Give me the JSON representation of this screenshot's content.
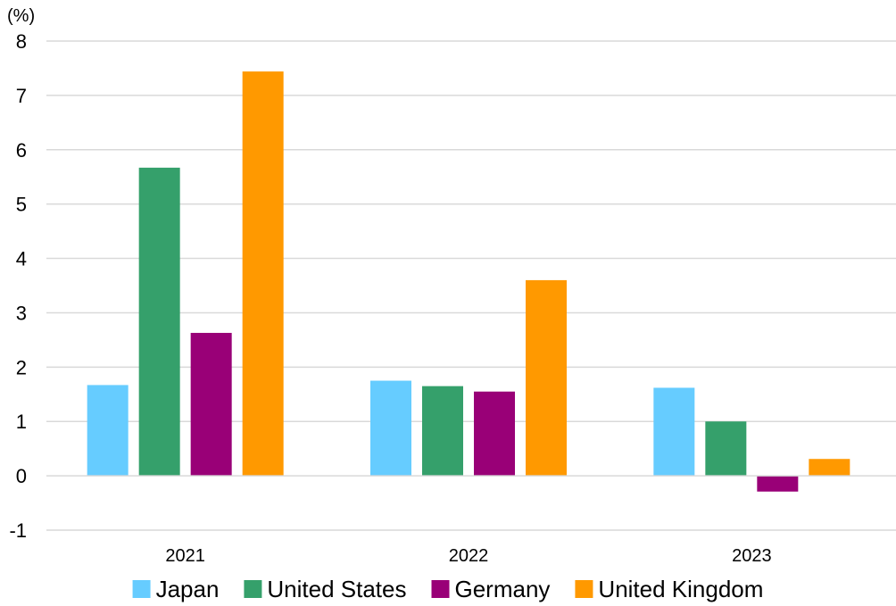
{
  "chart_data": {
    "type": "bar",
    "ylabel": "(%)",
    "ylim": [
      -1,
      8
    ],
    "yticks": [
      -1,
      0,
      1,
      2,
      3,
      4,
      5,
      6,
      7,
      8
    ],
    "categories": [
      "2021",
      "2022",
      "2023"
    ],
    "grid": true,
    "legend_position": "bottom",
    "series": [
      {
        "name": "Japan",
        "color": "#66ccff",
        "values": [
          1.67,
          1.75,
          1.62
        ]
      },
      {
        "name": "United States",
        "color": "#35a06b",
        "values": [
          5.67,
          1.65,
          1.0
        ]
      },
      {
        "name": "Germany",
        "color": "#990077",
        "values": [
          2.63,
          1.55,
          -0.29
        ]
      },
      {
        "name": "United Kingdom",
        "color": "#ff9900",
        "values": [
          7.44,
          3.6,
          0.31
        ]
      }
    ]
  }
}
